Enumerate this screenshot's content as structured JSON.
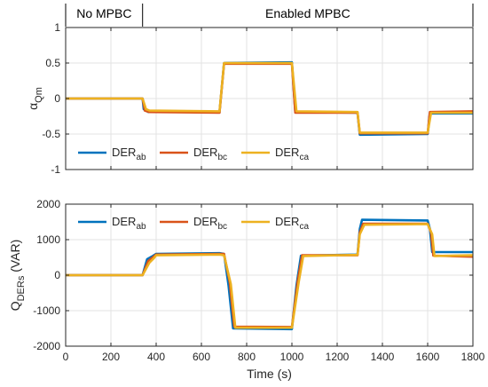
{
  "colors": {
    "ab": "#0072BD",
    "bc": "#D95319",
    "ca": "#EDB120",
    "grid": "#e3e3e3",
    "axis": "#262626"
  },
  "phases": {
    "left": "No MPBC",
    "right": "Enabled MPBC",
    "boundary_x": 340
  },
  "chart_data": [
    {
      "type": "line",
      "title": "",
      "xlabel": "",
      "ylabel_main": "α",
      "ylabel_sub": "Qm",
      "xlim": [
        0,
        1800
      ],
      "ylim": [
        -1,
        1
      ],
      "xticks": [
        0,
        200,
        400,
        600,
        800,
        1000,
        1200,
        1400,
        1600,
        1800
      ],
      "yticks": [
        -1,
        -0.5,
        0,
        0.5,
        1
      ],
      "ytick_labels": [
        "-1",
        "-0.5",
        "0",
        "0.5",
        "1"
      ],
      "grid": true,
      "legend_position": "bottom-left",
      "series": [
        {
          "name": "DER",
          "sub": "ab",
          "color_key": "ab",
          "x": [
            0,
            340,
            345,
            365,
            680,
            700,
            1000,
            1015,
            1290,
            1300,
            1600,
            1610,
            1800
          ],
          "y": [
            0,
            0,
            -0.15,
            -0.19,
            -0.19,
            0.5,
            0.51,
            -0.19,
            -0.2,
            -0.51,
            -0.5,
            -0.21,
            -0.21
          ]
        },
        {
          "name": "DER",
          "sub": "bc",
          "color_key": "bc",
          "x": [
            0,
            340,
            350,
            370,
            680,
            700,
            1000,
            1015,
            1290,
            1300,
            1600,
            1610,
            1800
          ],
          "y": [
            0,
            0,
            -0.17,
            -0.19,
            -0.2,
            0.49,
            0.49,
            -0.2,
            -0.2,
            -0.49,
            -0.49,
            -0.19,
            -0.18
          ]
        },
        {
          "name": "DER",
          "sub": "ca",
          "color_key": "ca",
          "x": [
            0,
            340,
            355,
            370,
            680,
            700,
            1000,
            1020,
            1290,
            1300,
            1600,
            1615,
            1800
          ],
          "y": [
            0,
            0,
            -0.15,
            -0.17,
            -0.18,
            0.5,
            0.5,
            -0.18,
            -0.19,
            -0.48,
            -0.48,
            -0.2,
            -0.2
          ]
        }
      ]
    },
    {
      "type": "line",
      "title": "",
      "xlabel": "Time (s)",
      "ylabel_main": "Q",
      "ylabel_sub": "DERs",
      "ylabel_tail": " (VAR)",
      "xlim": [
        0,
        1800
      ],
      "ylim": [
        -2000,
        2000
      ],
      "xticks": [
        0,
        200,
        400,
        600,
        800,
        1000,
        1200,
        1400,
        1600,
        1800
      ],
      "xtick_labels": [
        "0",
        "200",
        "400",
        "600",
        "800",
        "1000",
        "1200",
        "1400",
        "1600",
        "1800"
      ],
      "yticks": [
        -2000,
        -1000,
        0,
        1000,
        2000
      ],
      "ytick_labels": [
        "-2000",
        "-1000",
        "0",
        "1000",
        "2000"
      ],
      "grid": true,
      "legend_position": "top-left",
      "series": [
        {
          "name": "DER",
          "sub": "ab",
          "color_key": "ab",
          "x": [
            0,
            340,
            360,
            380,
            400,
            680,
            700,
            720,
            740,
            1000,
            1020,
            1040,
            1290,
            1300,
            1310,
            1600,
            1610,
            1620,
            1800
          ],
          "y": [
            0,
            0,
            450,
            520,
            600,
            620,
            600,
            -300,
            -1500,
            -1520,
            -300,
            550,
            580,
            1300,
            1560,
            1540,
            1300,
            650,
            650
          ]
        },
        {
          "name": "DER",
          "sub": "bc",
          "color_key": "bc",
          "x": [
            0,
            340,
            365,
            385,
            400,
            680,
            700,
            725,
            745,
            1000,
            1025,
            1045,
            1290,
            1300,
            1315,
            1600,
            1615,
            1625,
            1800
          ],
          "y": [
            0,
            0,
            400,
            500,
            580,
            600,
            600,
            -200,
            -1450,
            -1460,
            -200,
            560,
            560,
            1200,
            1450,
            1450,
            1200,
            550,
            520
          ]
        },
        {
          "name": "DER",
          "sub": "ca",
          "color_key": "ca",
          "x": [
            0,
            340,
            370,
            390,
            400,
            680,
            700,
            730,
            750,
            1000,
            1030,
            1050,
            1290,
            1300,
            1320,
            1600,
            1620,
            1630,
            1800
          ],
          "y": [
            0,
            0,
            350,
            480,
            560,
            580,
            560,
            -250,
            -1480,
            -1480,
            -200,
            540,
            570,
            1150,
            1420,
            1440,
            1150,
            540,
            560
          ]
        }
      ]
    }
  ]
}
